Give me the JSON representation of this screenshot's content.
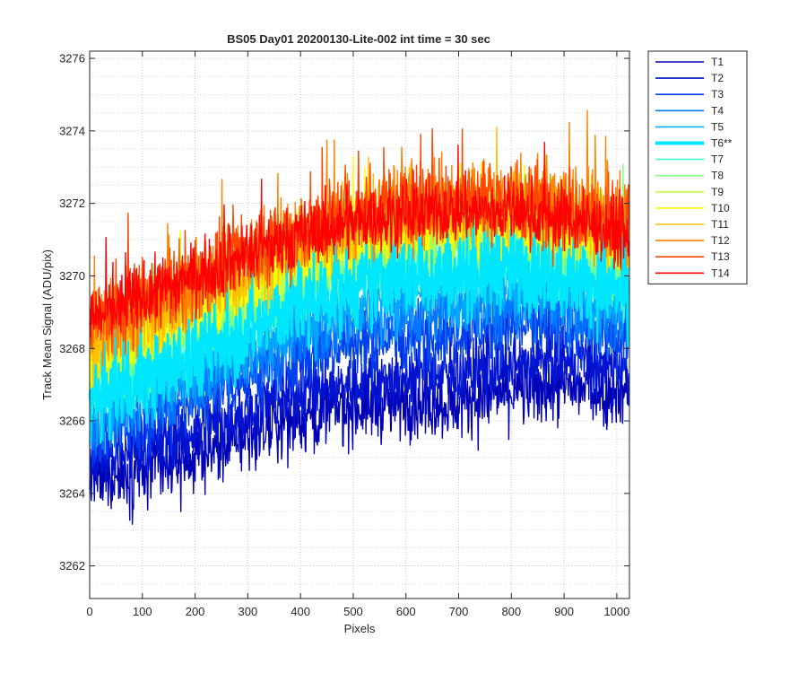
{
  "chart_data": {
    "type": "line",
    "title": "BS05 Day01 20200130-Lite-002 int time = 30 sec",
    "xlabel": "Pixels",
    "ylabel": "Track Mean Signal (ADU/pix)",
    "xlim": [
      0,
      1024
    ],
    "ylim": [
      3261.1,
      3276.2
    ],
    "x_ticks": [
      0,
      100,
      200,
      300,
      400,
      500,
      600,
      700,
      800,
      900,
      1000
    ],
    "x_tick_labels": [
      "0",
      "100",
      "200",
      "300",
      "400",
      "500",
      "600",
      "700",
      "800",
      "900",
      "1000"
    ],
    "y_ticks": [
      3262,
      3264,
      3266,
      3268,
      3270,
      3272,
      3274,
      3276
    ],
    "y_tick_labels": [
      "3262",
      "3264",
      "3266",
      "3268",
      "3270",
      "3272",
      "3274",
      "3276"
    ],
    "y_minor_ticks": [
      3261.5,
      3262.5,
      3263,
      3263.5,
      3264.5,
      3265,
      3265.5,
      3266.5,
      3267,
      3267.5,
      3268.5,
      3269,
      3269.5,
      3270.5,
      3271,
      3271.5,
      3272.5,
      3273,
      3273.5,
      3274.5,
      3275,
      3275.5
    ],
    "grid": true,
    "minor_grid_y": true,
    "legend_position": "outside-right-top",
    "n_points": 1024,
    "series": [
      {
        "name": "T1",
        "color": "#0000b4",
        "trend": [
          [
            0,
            3264.4
          ],
          [
            100,
            3264.6
          ],
          [
            200,
            3265.0
          ],
          [
            300,
            3265.6
          ],
          [
            400,
            3266.1
          ],
          [
            500,
            3266.4
          ],
          [
            600,
            3266.5
          ],
          [
            700,
            3266.5
          ],
          [
            800,
            3266.8
          ],
          [
            900,
            3266.9
          ],
          [
            1024,
            3266.8
          ]
        ],
        "noise": 0.9
      },
      {
        "name": "T2",
        "color": "#0014d2",
        "trend": [
          [
            0,
            3264.9
          ],
          [
            100,
            3265.2
          ],
          [
            200,
            3265.7
          ],
          [
            300,
            3266.3
          ],
          [
            400,
            3266.8
          ],
          [
            500,
            3267.0
          ],
          [
            600,
            3267.2
          ],
          [
            700,
            3267.3
          ],
          [
            800,
            3267.5
          ],
          [
            900,
            3267.6
          ],
          [
            1024,
            3267.4
          ]
        ],
        "noise": 0.85
      },
      {
        "name": "T3",
        "color": "#0040ee",
        "trend": [
          [
            0,
            3265.5
          ],
          [
            100,
            3266.0
          ],
          [
            200,
            3266.6
          ],
          [
            300,
            3267.2
          ],
          [
            400,
            3267.8
          ],
          [
            500,
            3268.1
          ],
          [
            600,
            3268.3
          ],
          [
            700,
            3268.5
          ],
          [
            800,
            3268.6
          ],
          [
            900,
            3268.6
          ],
          [
            1024,
            3268.3
          ]
        ],
        "noise": 0.85
      },
      {
        "name": "T4",
        "color": "#0078ff",
        "trend": [
          [
            0,
            3265.9
          ],
          [
            100,
            3266.4
          ],
          [
            200,
            3267.0
          ],
          [
            300,
            3267.7
          ],
          [
            400,
            3268.3
          ],
          [
            500,
            3268.7
          ],
          [
            600,
            3268.9
          ],
          [
            700,
            3269.1
          ],
          [
            800,
            3269.2
          ],
          [
            900,
            3269.1
          ],
          [
            1024,
            3268.7
          ]
        ],
        "noise": 0.85
      },
      {
        "name": "T5",
        "color": "#00aaff",
        "trend": [
          [
            0,
            3266.2
          ],
          [
            100,
            3266.8
          ],
          [
            200,
            3267.4
          ],
          [
            300,
            3268.1
          ],
          [
            400,
            3268.8
          ],
          [
            500,
            3269.2
          ],
          [
            600,
            3269.5
          ],
          [
            700,
            3269.6
          ],
          [
            800,
            3269.7
          ],
          [
            900,
            3269.5
          ],
          [
            1024,
            3269.1
          ]
        ],
        "noise": 0.9
      },
      {
        "name": "T6**",
        "color": "#00e6ff",
        "trend": [
          [
            0,
            3266.5
          ],
          [
            100,
            3267.1
          ],
          [
            200,
            3267.8
          ],
          [
            300,
            3268.5
          ],
          [
            400,
            3269.2
          ],
          [
            500,
            3269.7
          ],
          [
            600,
            3270.0
          ],
          [
            700,
            3270.1
          ],
          [
            800,
            3270.2
          ],
          [
            900,
            3270.0
          ],
          [
            1024,
            3269.5
          ]
        ],
        "noise": 1.0,
        "highlight": true
      },
      {
        "name": "T7",
        "color": "#40ffc8",
        "trend": [
          [
            0,
            3266.8
          ],
          [
            100,
            3267.5
          ],
          [
            200,
            3268.2
          ],
          [
            300,
            3268.9
          ],
          [
            400,
            3269.6
          ],
          [
            500,
            3270.1
          ],
          [
            600,
            3270.4
          ],
          [
            700,
            3270.5
          ],
          [
            800,
            3270.6
          ],
          [
            900,
            3270.4
          ],
          [
            1024,
            3269.9
          ]
        ],
        "noise": 0.9
      },
      {
        "name": "T8",
        "color": "#80ff80",
        "trend": [
          [
            0,
            3267.1
          ],
          [
            100,
            3267.8
          ],
          [
            200,
            3268.5
          ],
          [
            300,
            3269.2
          ],
          [
            400,
            3269.9
          ],
          [
            500,
            3270.4
          ],
          [
            600,
            3270.7
          ],
          [
            700,
            3270.8
          ],
          [
            800,
            3270.9
          ],
          [
            900,
            3270.7
          ],
          [
            1024,
            3270.2
          ]
        ],
        "noise": 0.9
      },
      {
        "name": "T9",
        "color": "#c0ff40",
        "trend": [
          [
            0,
            3267.4
          ],
          [
            100,
            3268.1
          ],
          [
            200,
            3268.8
          ],
          [
            300,
            3269.5
          ],
          [
            400,
            3270.2
          ],
          [
            500,
            3270.7
          ],
          [
            600,
            3271.0
          ],
          [
            700,
            3271.1
          ],
          [
            800,
            3271.2
          ],
          [
            900,
            3271.0
          ],
          [
            1024,
            3270.5
          ]
        ],
        "noise": 0.9
      },
      {
        "name": "T10",
        "color": "#ffff00",
        "trend": [
          [
            0,
            3267.7
          ],
          [
            100,
            3268.4
          ],
          [
            200,
            3269.1
          ],
          [
            300,
            3269.8
          ],
          [
            400,
            3270.5
          ],
          [
            500,
            3271.0
          ],
          [
            600,
            3271.3
          ],
          [
            700,
            3271.4
          ],
          [
            800,
            3271.5
          ],
          [
            900,
            3271.3
          ],
          [
            1024,
            3270.8
          ]
        ],
        "noise": 0.9
      },
      {
        "name": "T11",
        "color": "#ffbe00",
        "trend": [
          [
            0,
            3268.0
          ],
          [
            100,
            3268.7
          ],
          [
            200,
            3269.4
          ],
          [
            300,
            3270.1
          ],
          [
            400,
            3270.8
          ],
          [
            500,
            3271.3
          ],
          [
            600,
            3271.6
          ],
          [
            700,
            3271.7
          ],
          [
            800,
            3271.8
          ],
          [
            900,
            3271.6
          ],
          [
            1024,
            3271.1
          ]
        ],
        "noise": 0.95
      },
      {
        "name": "T12",
        "color": "#ff8200",
        "trend": [
          [
            0,
            3268.4
          ],
          [
            100,
            3269.1
          ],
          [
            200,
            3269.8
          ],
          [
            300,
            3270.5
          ],
          [
            400,
            3271.2
          ],
          [
            500,
            3271.7
          ],
          [
            600,
            3272.0
          ],
          [
            700,
            3272.1
          ],
          [
            800,
            3272.2
          ],
          [
            900,
            3272.0
          ],
          [
            1024,
            3271.5
          ]
        ],
        "noise": 1.05
      },
      {
        "name": "T13",
        "color": "#ff4600",
        "trend": [
          [
            0,
            3268.6
          ],
          [
            100,
            3269.3
          ],
          [
            200,
            3270.0
          ],
          [
            300,
            3270.7
          ],
          [
            400,
            3271.3
          ],
          [
            500,
            3271.8
          ],
          [
            600,
            3272.0
          ],
          [
            700,
            3272.1
          ],
          [
            800,
            3272.1
          ],
          [
            900,
            3271.9
          ],
          [
            1024,
            3271.4
          ]
        ],
        "noise": 1.0
      },
      {
        "name": "T14",
        "color": "#ff0000",
        "trend": [
          [
            0,
            3268.8
          ],
          [
            100,
            3269.4
          ],
          [
            200,
            3270.0
          ],
          [
            300,
            3270.6
          ],
          [
            400,
            3271.1
          ],
          [
            500,
            3271.5
          ],
          [
            600,
            3271.7
          ],
          [
            700,
            3271.8
          ],
          [
            800,
            3271.8
          ],
          [
            900,
            3271.6
          ],
          [
            1024,
            3271.1
          ]
        ],
        "noise": 0.8
      }
    ]
  }
}
